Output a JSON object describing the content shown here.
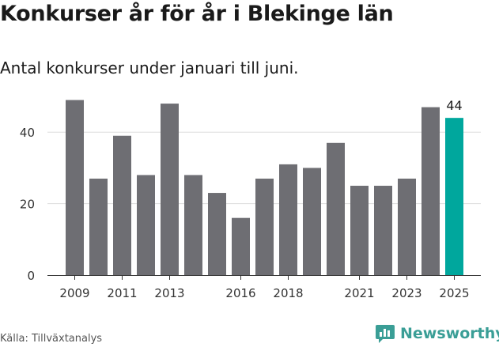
{
  "title": "Konkurser år för år i Blekinge län",
  "subtitle": "Antal konkurser under januari till juni.",
  "source": "Källa: Tillväxtanalys",
  "brand": {
    "name": "Newsworthy",
    "icon": "newsworthy-logo-icon",
    "color": "#3a9e96"
  },
  "colors": {
    "bar": "#6e6e73",
    "highlight": "#00a79d",
    "grid": "#dddddd",
    "axis": "#333333"
  },
  "chart_data": {
    "type": "bar",
    "categories": [
      "2009",
      "2010",
      "2011",
      "2012",
      "2013",
      "2014",
      "2015",
      "2016",
      "2017",
      "2018",
      "2019",
      "2020",
      "2021",
      "2022",
      "2023",
      "2024",
      "2025"
    ],
    "values": [
      49,
      27,
      39,
      28,
      48,
      28,
      23,
      16,
      27,
      31,
      30,
      37,
      25,
      25,
      27,
      47,
      44
    ],
    "x_tick_labels": [
      "2009",
      "2011",
      "2013",
      "2016",
      "2018",
      "2021",
      "2023",
      "2025"
    ],
    "y_ticks": [
      0,
      20,
      40
    ],
    "ylim": [
      0,
      52
    ],
    "highlight_index": 16,
    "highlight_label": "44",
    "grid": true,
    "title": "Konkurser år för år i Blekinge län",
    "xlabel": "",
    "ylabel": ""
  }
}
